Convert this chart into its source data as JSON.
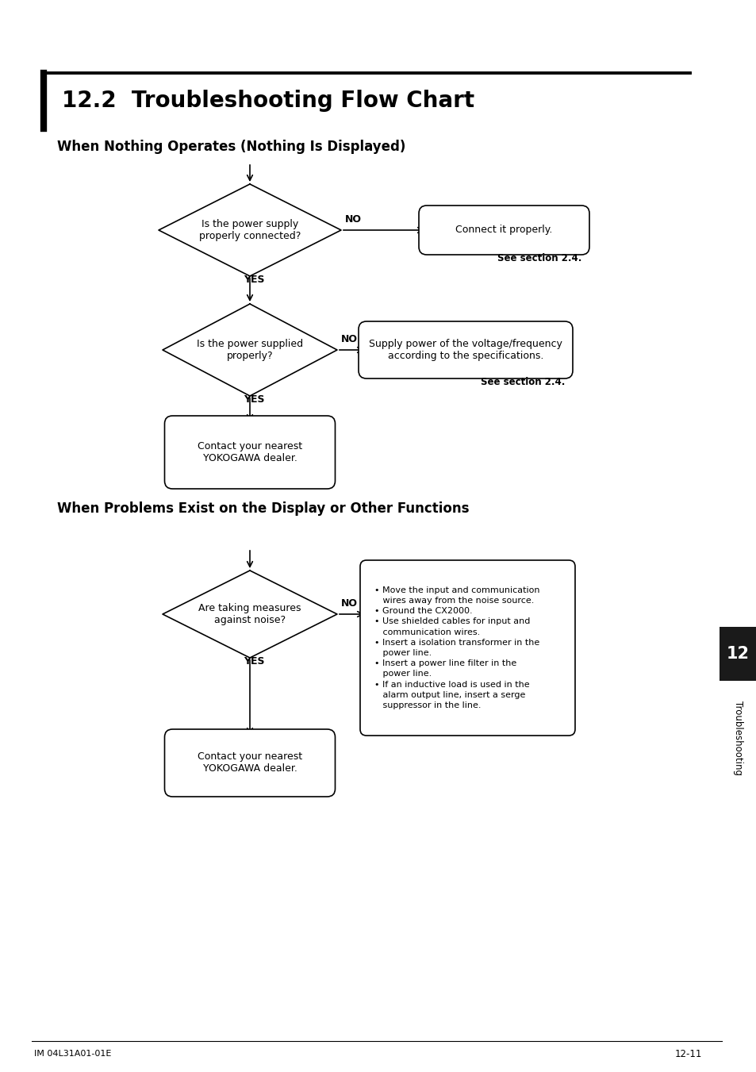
{
  "title": "12.2  Troubleshooting Flow Chart",
  "section1_title": "When Nothing Operates (Nothing Is Displayed)",
  "section2_title": "When Problems Exist on the Display or Other Functions",
  "diamond1_text": "Is the power supply\nproperly connected?",
  "diamond2_text": "Is the power supplied\nproperly?",
  "diamond3_text": "Are taking measures\nagainst noise?",
  "box1_text": "Connect it properly.",
  "box1_ref": "See section 2.4.",
  "box2_line1": "Supply power of the voltage/frequency",
  "box2_line2": "according to the specifications.",
  "box2_ref": "See section 2.4.",
  "box3_text": "Contact your nearest\nYOKOGAWA dealer.",
  "box4_text": "Contact your nearest\nYOKOGAWA dealer.",
  "noise_line1": "• Move the input and communication",
  "noise_line2": "   wires away from the noise source.",
  "noise_line3": "• Ground the CX2000.",
  "noise_line4": "• Use shielded cables for input and",
  "noise_line5": "   communication wires.",
  "noise_line6": "• Insert a isolation transformer in the",
  "noise_line7": "   power line.",
  "noise_line8": "• Insert a power line filter in the",
  "noise_line9": "   power line.",
  "noise_line10": "• If an inductive load is used in the",
  "noise_line11": "   alarm output line, insert a serge",
  "noise_line12": "   suppressor in the line.",
  "yes_label": "YES",
  "no_label": "NO",
  "footer_left": "IM 04L31A01-01E",
  "footer_right": "12-11",
  "sidebar_text": "Troubleshooting",
  "sidebar_number": "12",
  "bg_color": "#ffffff",
  "line_color": "#000000",
  "text_color": "#000000"
}
